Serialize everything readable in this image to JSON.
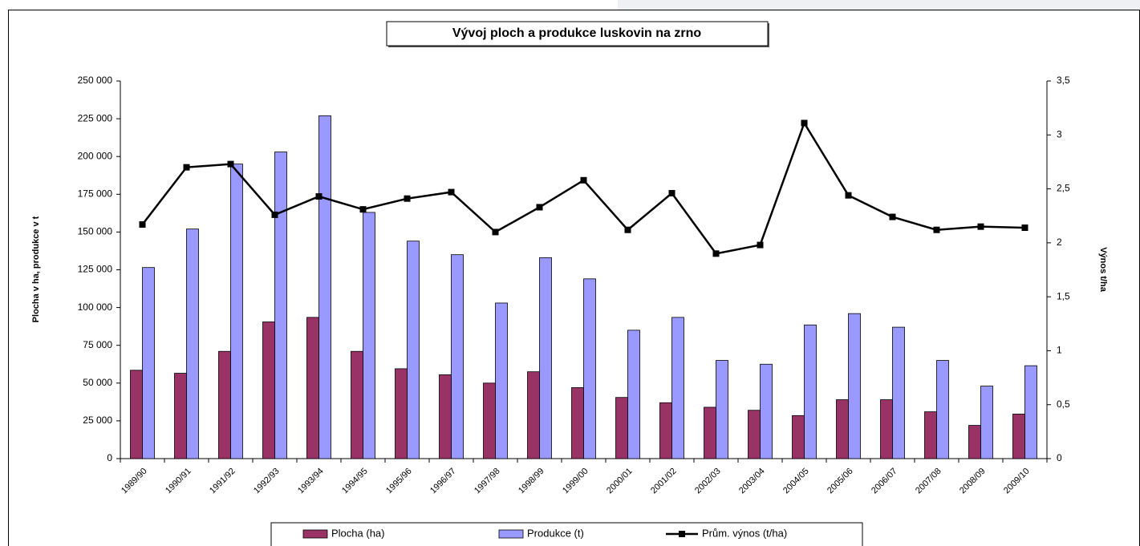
{
  "chart_data": {
    "type": "bar_line",
    "title": "Vývoj ploch a produkce luskovin na zrno",
    "y_label": "Plocha v ha, produkce v t",
    "y2_label": "Výnos t/ha",
    "categories": [
      "1989/90",
      "1990/91",
      "1991/92",
      "1992/93",
      "1993/94",
      "1994/95",
      "1995/96",
      "1996/97",
      "1997/98",
      "1998/99",
      "1999/00",
      "2000/01",
      "2001/02",
      "2002/03",
      "2003/04",
      "2004/05",
      "2005/06",
      "2006/07",
      "2007/08",
      "2008/09",
      "2009/10"
    ],
    "series": [
      {
        "name": "Plocha  (ha)",
        "color": "#993366",
        "kind": "bar",
        "values": [
          58500,
          56500,
          71000,
          90500,
          93500,
          71000,
          59500,
          55500,
          50000,
          57500,
          47000,
          40500,
          37000,
          34000,
          32000,
          28500,
          39000,
          39000,
          31000,
          22000,
          29500
        ]
      },
      {
        "name": "Produkce (t)",
        "color": "#9999ff",
        "kind": "bar",
        "values": [
          126500,
          152000,
          195000,
          203000,
          227000,
          163000,
          144000,
          135000,
          103000,
          133000,
          119000,
          85000,
          93500,
          65000,
          62500,
          88500,
          96000,
          87000,
          65000,
          48000,
          61500
        ]
      },
      {
        "name": "Prům. výnos (t/ha)",
        "color": "#000000",
        "kind": "line",
        "axis": "y2",
        "values": [
          2.17,
          2.7,
          2.73,
          2.26,
          2.43,
          2.31,
          2.41,
          2.47,
          2.1,
          2.33,
          2.58,
          2.12,
          2.46,
          1.9,
          1.98,
          3.11,
          2.44,
          2.24,
          2.12,
          2.15,
          2.14
        ]
      }
    ],
    "ylim": [
      0,
      250000
    ],
    "yticks": [
      0,
      {
        "value": 25000,
        "label": "25 000"
      },
      {
        "value": 50000,
        "label": "50 000"
      },
      {
        "value": 75000,
        "label": "75 000"
      },
      {
        "value": 100000,
        "label": "100 000"
      },
      {
        "value": 125000,
        "label": "125 000"
      },
      {
        "value": 150000,
        "label": "150 000"
      },
      {
        "value": 175000,
        "label": "175 000"
      },
      {
        "value": 200000,
        "label": "200 000"
      },
      {
        "value": 225000,
        "label": "225 000"
      },
      {
        "value": 250000,
        "label": "250 000"
      }
    ],
    "y2lim": [
      0,
      3.5
    ],
    "y2ticks": [
      0,
      {
        "value": 0.5,
        "label": "0,5"
      },
      1,
      {
        "value": 1.5,
        "label": "1,5"
      },
      2,
      {
        "value": 2.5,
        "label": "2,5"
      },
      3,
      {
        "value": 3.5,
        "label": "3,5"
      }
    ],
    "legend": "bottom"
  }
}
